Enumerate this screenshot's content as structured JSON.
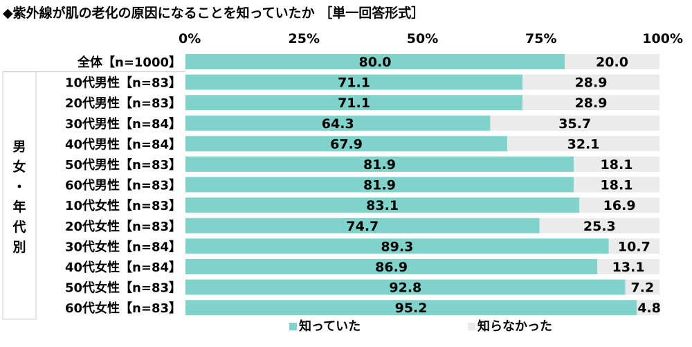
{
  "title": "◆紫外線が肌の老化の原因になることを知っていたか ［単一回答形式］",
  "colors": {
    "knew": "#7fd3cb",
    "didnt": "#ebebeb",
    "separator": "#cccccc"
  },
  "chart_data": {
    "type": "bar",
    "orientation": "horizontal",
    "stacked": true,
    "xlim": [
      0,
      100
    ],
    "ticks": [
      "0%",
      "25%",
      "50%",
      "75%",
      "100%"
    ],
    "group_label": "男女・年代別",
    "categories": [
      "全体【n=1000】",
      "10代男性【n=83】",
      "20代男性【n=83】",
      "30代男性【n=84】",
      "40代男性【n=84】",
      "50代男性【n=83】",
      "60代男性【n=83】",
      "10代女性【n=83】",
      "20代女性【n=83】",
      "30代女性【n=84】",
      "40代女性【n=84】",
      "50代女性【n=83】",
      "60代女性【n=83】"
    ],
    "series": [
      {
        "name": "知っていた",
        "values": [
          80.0,
          71.1,
          71.1,
          64.3,
          67.9,
          81.9,
          81.9,
          83.1,
          74.7,
          89.3,
          86.9,
          92.8,
          95.2
        ]
      },
      {
        "name": "知らなかった",
        "values": [
          20.0,
          28.9,
          28.9,
          35.7,
          32.1,
          18.1,
          18.1,
          16.9,
          25.3,
          10.7,
          13.1,
          7.2,
          4.8
        ]
      }
    ],
    "legend_position": "bottom"
  }
}
